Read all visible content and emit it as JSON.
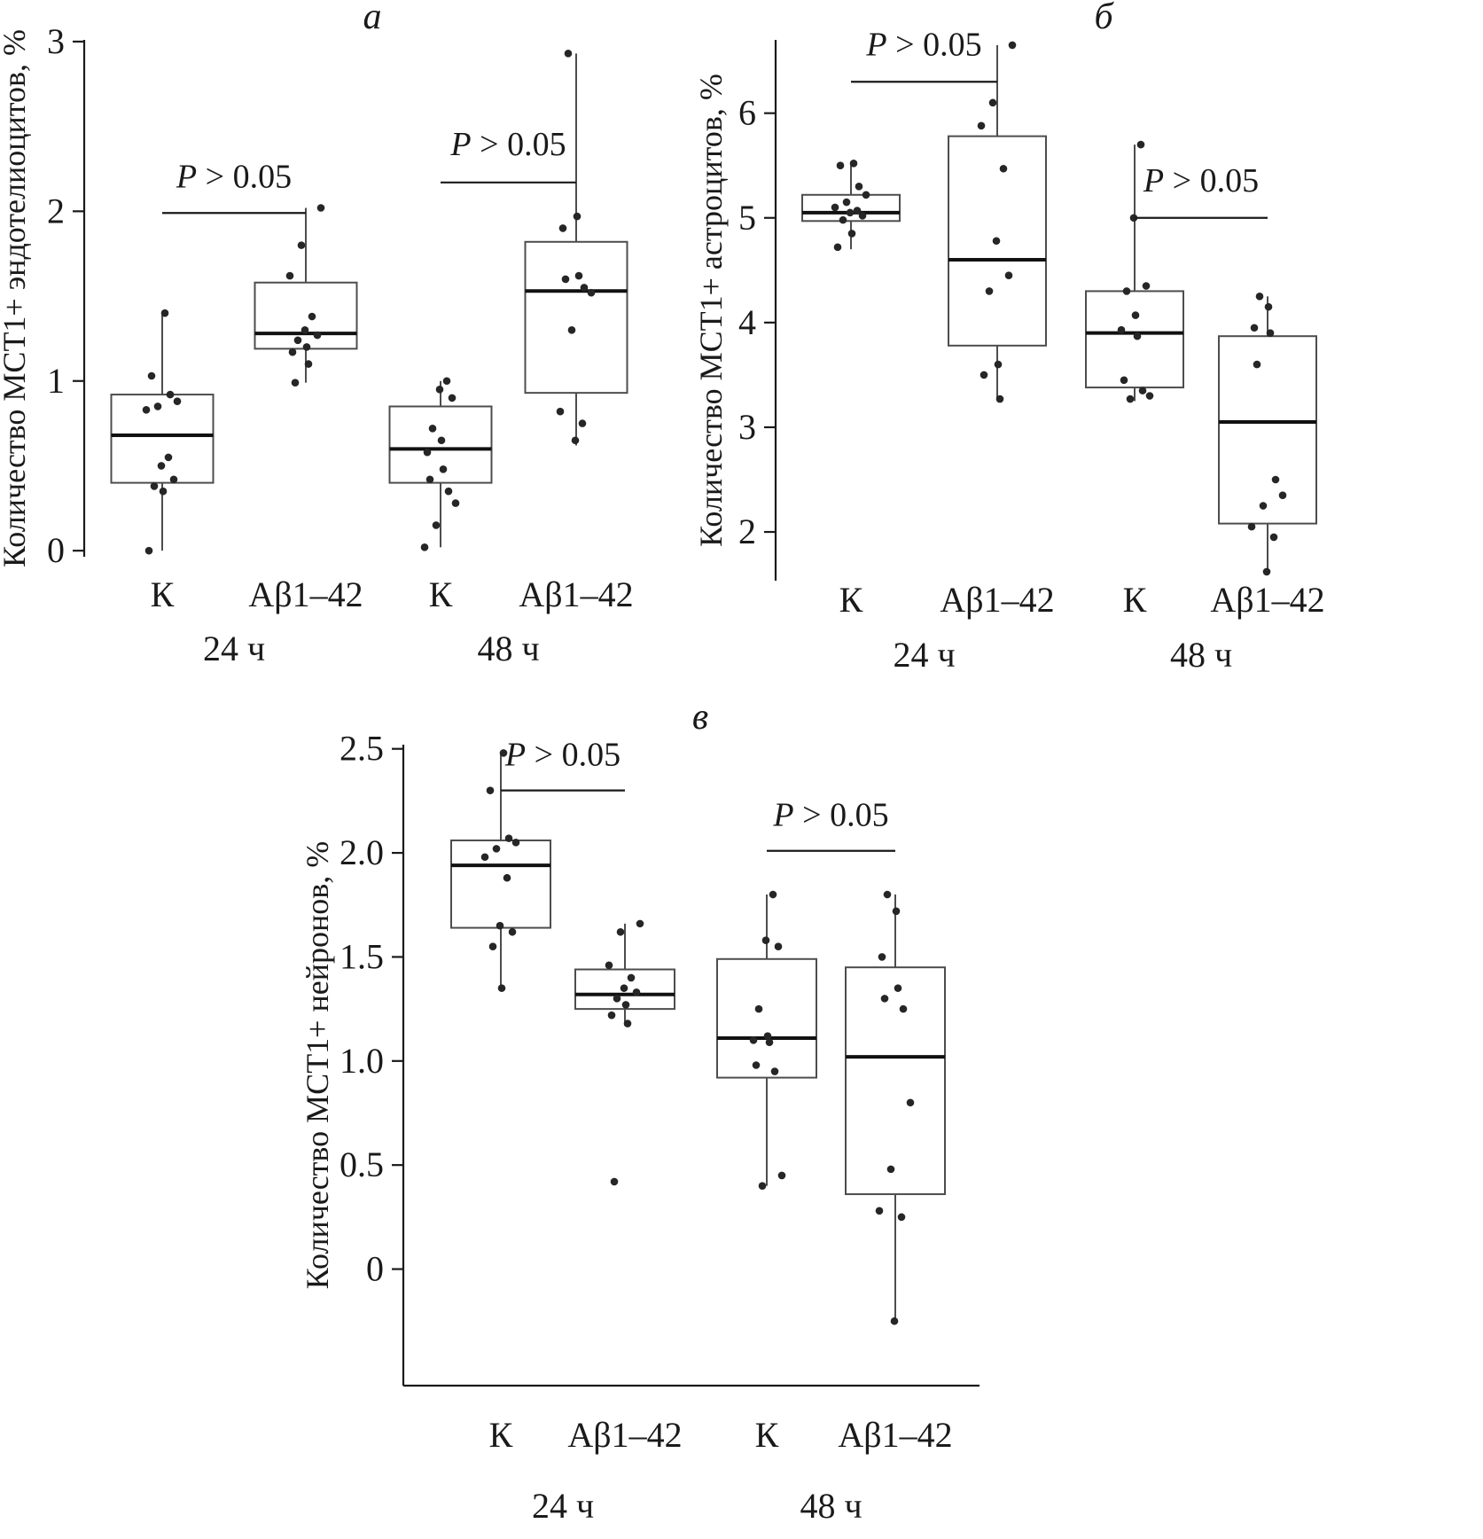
{
  "figure": {
    "background": "#ffffff",
    "ink_color": "#1a1a1a",
    "box_stroke_color": "#4d4d4d",
    "median_color": "#111111",
    "point_color": "#262626"
  },
  "chart_data": [
    {
      "type": "box",
      "panel_label": "a",
      "ylabel": "Количество МСТ1+ эндотелиоцитов, %",
      "ylim": [
        -0.02,
        3.01
      ],
      "yticks": {
        "values": [
          0,
          1,
          2,
          3
        ],
        "labels": [
          "0",
          "1",
          "2",
          "3"
        ]
      },
      "categories": [
        "К",
        "Аβ1–42",
        "К",
        "Аβ1–42"
      ],
      "group_labels": [
        {
          "label": "24 ч",
          "span": [
            0,
            1
          ]
        },
        {
          "label": "48 ч",
          "span": [
            2,
            3
          ]
        }
      ],
      "boxes": [
        {
          "low": 0.0,
          "q1": 0.4,
          "median": 0.68,
          "q3": 0.92,
          "high": 1.4
        },
        {
          "low": 0.99,
          "q1": 1.19,
          "median": 1.28,
          "q3": 1.58,
          "high": 2.02
        },
        {
          "low": 0.02,
          "q1": 0.4,
          "median": 0.6,
          "q3": 0.85,
          "high": 1.0
        },
        {
          "low": 0.62,
          "q1": 0.93,
          "median": 1.53,
          "q3": 1.82,
          "high": 2.93
        }
      ],
      "points": [
        [
          1.4,
          1.03,
          0.92,
          0.88,
          0.85,
          0.83,
          0.55,
          0.5,
          0.42,
          0.38,
          0.35,
          0.0
        ],
        [
          2.02,
          1.8,
          1.62,
          1.38,
          1.3,
          1.27,
          1.24,
          1.2,
          1.17,
          1.1,
          0.99
        ],
        [
          1.0,
          0.95,
          0.9,
          0.72,
          0.65,
          0.58,
          0.48,
          0.42,
          0.35,
          0.28,
          0.15,
          0.02
        ],
        [
          2.93,
          1.97,
          1.9,
          1.62,
          1.6,
          1.55,
          1.52,
          1.3,
          0.82,
          0.75,
          0.65
        ]
      ],
      "annotations": [
        {
          "text": "P > 0.05",
          "between": [
            0,
            1
          ],
          "text_y": 2.14,
          "line_y": 1.99
        },
        {
          "text": "P > 0.05",
          "between": [
            2,
            3
          ],
          "text_y": 2.33,
          "line_y": 2.17
        }
      ]
    },
    {
      "type": "box",
      "panel_label": "б",
      "ylabel": "Количество МСТ1+ астроцитов, %",
      "ylim": [
        1.56,
        6.7
      ],
      "yticks": {
        "values": [
          2,
          3,
          4,
          5,
          6
        ],
        "labels": [
          "2",
          "3",
          "4",
          "5",
          "6"
        ]
      },
      "categories": [
        "К",
        "Аβ1–42",
        "К",
        "Аβ1–42"
      ],
      "group_labels": [
        {
          "label": "24 ч",
          "span": [
            0,
            1
          ]
        },
        {
          "label": "48 ч",
          "span": [
            2,
            3
          ]
        }
      ],
      "boxes": [
        {
          "low": 4.7,
          "q1": 4.97,
          "median": 5.05,
          "q3": 5.22,
          "high": 5.52
        },
        {
          "low": 3.25,
          "q1": 3.78,
          "median": 4.6,
          "q3": 5.78,
          "high": 6.65
        },
        {
          "low": 3.25,
          "q1": 3.38,
          "median": 3.9,
          "q3": 4.3,
          "high": 5.7
        },
        {
          "low": 1.6,
          "q1": 2.08,
          "median": 3.05,
          "q3": 3.87,
          "high": 4.25
        }
      ],
      "points": [
        [
          5.52,
          5.5,
          5.3,
          5.22,
          5.15,
          5.1,
          5.07,
          5.05,
          5.02,
          4.98,
          4.85,
          4.72
        ],
        [
          6.65,
          6.1,
          5.88,
          5.47,
          4.78,
          4.45,
          4.3,
          3.6,
          3.5,
          3.27
        ],
        [
          5.7,
          5.0,
          4.35,
          4.3,
          4.07,
          3.93,
          3.87,
          3.45,
          3.35,
          3.3,
          3.27
        ],
        [
          4.25,
          4.15,
          3.95,
          3.9,
          3.6,
          2.5,
          2.35,
          2.25,
          2.05,
          1.95,
          1.62
        ]
      ],
      "annotations": [
        {
          "text": "P > 0.05",
          "between": [
            0,
            1
          ],
          "text_y": 6.55,
          "line_y": 6.3
        },
        {
          "text": "P > 0.05",
          "between": [
            2,
            3
          ],
          "text_y": 5.25,
          "line_y": 5.0
        }
      ]
    },
    {
      "type": "box",
      "panel_label": "в",
      "ylabel": "Количество МСТ1+ нейронов, %",
      "ylim": [
        -0.56,
        2.52
      ],
      "yticks": {
        "values": [
          0,
          0.5,
          1.0,
          1.5,
          2.0,
          2.5
        ],
        "labels": [
          "0",
          "0.5",
          "1.0",
          "1.5",
          "2.0",
          "2.5"
        ]
      },
      "categories": [
        "К",
        "Аβ1–42",
        "К",
        "Аβ1–42"
      ],
      "group_labels": [
        {
          "label": "24 ч",
          "span": [
            0,
            1
          ]
        },
        {
          "label": "48 ч",
          "span": [
            2,
            3
          ]
        }
      ],
      "boxes": [
        {
          "low": 1.35,
          "q1": 1.64,
          "median": 1.94,
          "q3": 2.06,
          "high": 2.48
        },
        {
          "low": 1.17,
          "q1": 1.25,
          "median": 1.32,
          "q3": 1.44,
          "high": 1.66
        },
        {
          "low": 0.4,
          "q1": 0.92,
          "median": 1.11,
          "q3": 1.49,
          "high": 1.8
        },
        {
          "low": -0.25,
          "q1": 0.36,
          "median": 1.02,
          "q3": 1.45,
          "high": 1.8
        }
      ],
      "points": [
        [
          2.48,
          2.3,
          2.07,
          2.05,
          2.02,
          1.98,
          1.88,
          1.65,
          1.62,
          1.55,
          1.35
        ],
        [
          1.66,
          1.62,
          1.46,
          1.4,
          1.35,
          1.33,
          1.3,
          1.27,
          1.22,
          1.18,
          0.42
        ],
        [
          1.8,
          1.58,
          1.55,
          1.25,
          1.12,
          1.1,
          1.09,
          0.98,
          0.95,
          0.45,
          0.4
        ],
        [
          1.8,
          1.72,
          1.5,
          1.35,
          1.3,
          1.25,
          0.8,
          0.48,
          0.28,
          0.25,
          -0.25
        ]
      ],
      "annotations": [
        {
          "text": "P > 0.05",
          "between": [
            0,
            1
          ],
          "text_y": 2.42,
          "line_y": 2.3
        },
        {
          "text": "P > 0.05",
          "between": [
            2,
            3
          ],
          "text_y": 2.13,
          "line_y": 2.01
        }
      ]
    }
  ]
}
